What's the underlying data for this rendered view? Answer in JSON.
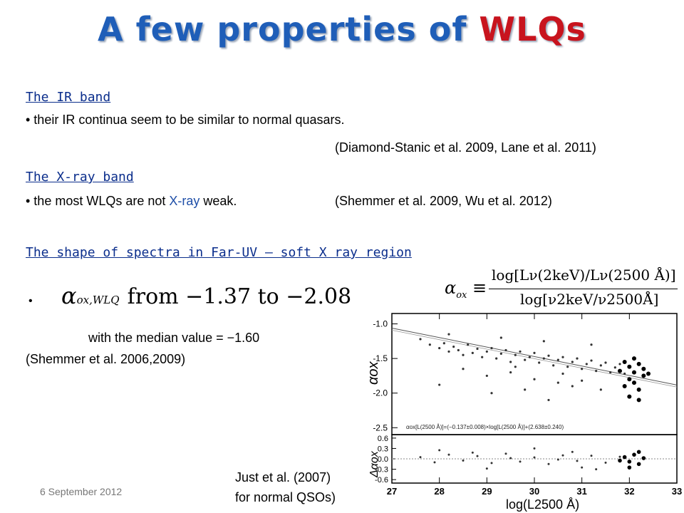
{
  "slide": {
    "title_main": "A few properties of ",
    "title_highlight": "WLQs",
    "ir": {
      "heading": "The  IR band",
      "bullet": "• their IR continua seem to be similar to normal quasars.",
      "citation": "(Diamond-Stanic et al. 2009, Lane et al. 2011)"
    },
    "xray": {
      "heading": "The  X-ray band",
      "bullet_pre": "• the  most WLQs are not ",
      "bullet_xray": "X-ray",
      "bullet_post": " weak.",
      "citation": "(Shemmer et al. 2009, Wu et al. 2012)"
    },
    "shape": {
      "heading": "The  shape of spectra in Far-UV – soft X ray region",
      "bullet_dot": "•",
      "alpha_range": "from −1.37 to −2.08",
      "median": "with the median value = −1.60",
      "citation": "(Shemmer et al. 2006,2009)"
    },
    "formula": {
      "lhs": "α",
      "lhs_sub": "ox",
      "equiv": "≡",
      "numerator": "log[Lν(2keV)/Lν(2500 Å)]",
      "denominator": "log[ν2keV/ν2500Å]"
    },
    "just_note_line1": "Just et al. (2007)",
    "just_note_line2": "for normal QSOs)",
    "date": "6 September 2012"
  },
  "chart_data": {
    "type": "scatter",
    "xlabel": "log(L2500 Å)",
    "ylabel_top": "αox",
    "ylabel_bottom": "Δαox",
    "xlim": [
      27,
      33
    ],
    "x_ticks": [
      "27",
      "28",
      "29",
      "30",
      "31",
      "32",
      "33"
    ],
    "top_ylim": [
      -2.6,
      -0.85
    ],
    "top_y_ticks": [
      "-1.0",
      "-1.5",
      "-2.0",
      "-2.5"
    ],
    "bottom_ylim": [
      -0.7,
      0.7
    ],
    "bottom_y_ticks": [
      "0.6",
      "0.3",
      "0.0",
      "-0.3",
      "-0.6"
    ],
    "fit_label": "αox[L(2500 Å)]=(−0.137±0.008)×log[L(2500 Å)]+(2.638±0.240)",
    "fit_slope": -0.137,
    "fit_intercept": 2.638,
    "normal_qsos": [
      [
        27.6,
        -1.22
      ],
      [
        27.8,
        -1.3
      ],
      [
        28.0,
        -1.35
      ],
      [
        28.1,
        -1.28
      ],
      [
        28.2,
        -1.4
      ],
      [
        28.3,
        -1.33
      ],
      [
        28.4,
        -1.38
      ],
      [
        28.5,
        -1.45
      ],
      [
        28.6,
        -1.3
      ],
      [
        28.7,
        -1.42
      ],
      [
        28.8,
        -1.36
      ],
      [
        28.9,
        -1.48
      ],
      [
        29.0,
        -1.4
      ],
      [
        29.1,
        -1.35
      ],
      [
        29.2,
        -1.5
      ],
      [
        29.3,
        -1.43
      ],
      [
        29.4,
        -1.38
      ],
      [
        29.5,
        -1.55
      ],
      [
        29.6,
        -1.45
      ],
      [
        29.7,
        -1.4
      ],
      [
        29.8,
        -1.52
      ],
      [
        29.9,
        -1.48
      ],
      [
        30.0,
        -1.42
      ],
      [
        30.1,
        -1.56
      ],
      [
        30.2,
        -1.5
      ],
      [
        30.3,
        -1.46
      ],
      [
        30.4,
        -1.6
      ],
      [
        30.5,
        -1.52
      ],
      [
        30.6,
        -1.48
      ],
      [
        30.7,
        -1.62
      ],
      [
        30.8,
        -1.55
      ],
      [
        30.9,
        -1.5
      ],
      [
        31.0,
        -1.65
      ],
      [
        31.1,
        -1.58
      ],
      [
        31.2,
        -1.53
      ],
      [
        31.3,
        -1.68
      ],
      [
        31.4,
        -1.6
      ],
      [
        31.5,
        -1.56
      ],
      [
        31.6,
        -1.7
      ],
      [
        31.7,
        -1.63
      ],
      [
        31.8,
        -1.58
      ],
      [
        31.9,
        -1.72
      ],
      [
        28.5,
        -1.65
      ],
      [
        29.0,
        -1.75
      ],
      [
        29.5,
        -1.7
      ],
      [
        30.0,
        -1.8
      ],
      [
        30.5,
        -1.85
      ],
      [
        31.0,
        -1.82
      ],
      [
        28.2,
        -1.15
      ],
      [
        29.3,
        -1.2
      ],
      [
        30.2,
        -1.25
      ],
      [
        31.2,
        -1.3
      ],
      [
        29.8,
        -1.95
      ],
      [
        30.8,
        -1.9
      ],
      [
        28.0,
        -1.88
      ],
      [
        29.1,
        -2.0
      ],
      [
        30.3,
        -2.1
      ],
      [
        31.4,
        -1.95
      ],
      [
        29.6,
        -1.62
      ],
      [
        30.6,
        -1.72
      ]
    ],
    "wlqs": [
      [
        31.9,
        -1.55
      ],
      [
        32.0,
        -1.62
      ],
      [
        32.1,
        -1.7
      ],
      [
        32.2,
        -1.58
      ],
      [
        32.3,
        -1.75
      ],
      [
        32.0,
        -1.8
      ],
      [
        31.8,
        -1.68
      ],
      [
        32.1,
        -1.85
      ],
      [
        32.2,
        -1.95
      ],
      [
        32.3,
        -1.65
      ],
      [
        31.9,
        -1.9
      ],
      [
        32.0,
        -2.05
      ],
      [
        32.2,
        -2.1
      ],
      [
        32.1,
        -1.5
      ],
      [
        32.4,
        -1.72
      ]
    ],
    "residuals_normal": [
      [
        27.6,
        0.05
      ],
      [
        27.9,
        -0.1
      ],
      [
        28.2,
        0.12
      ],
      [
        28.5,
        -0.05
      ],
      [
        28.8,
        0.08
      ],
      [
        29.1,
        -0.12
      ],
      [
        29.4,
        0.15
      ],
      [
        29.7,
        -0.08
      ],
      [
        30.0,
        0.04
      ],
      [
        30.3,
        -0.15
      ],
      [
        30.6,
        0.1
      ],
      [
        30.9,
        -0.06
      ],
      [
        31.2,
        0.09
      ],
      [
        31.5,
        -0.11
      ],
      [
        31.8,
        0.06
      ],
      [
        28.0,
        0.25
      ],
      [
        29.0,
        -0.28
      ],
      [
        30.0,
        0.3
      ],
      [
        31.0,
        -0.25
      ],
      [
        29.5,
        0.02
      ],
      [
        30.5,
        -0.02
      ],
      [
        28.7,
        0.18
      ],
      [
        30.8,
        0.2
      ],
      [
        31.3,
        -0.3
      ]
    ],
    "residuals_wlq": [
      [
        31.9,
        0.05
      ],
      [
        32.0,
        -0.08
      ],
      [
        32.1,
        0.12
      ],
      [
        32.2,
        -0.15
      ],
      [
        32.3,
        0.02
      ],
      [
        32.0,
        -0.25
      ],
      [
        32.2,
        0.2
      ],
      [
        31.8,
        -0.05
      ]
    ]
  }
}
